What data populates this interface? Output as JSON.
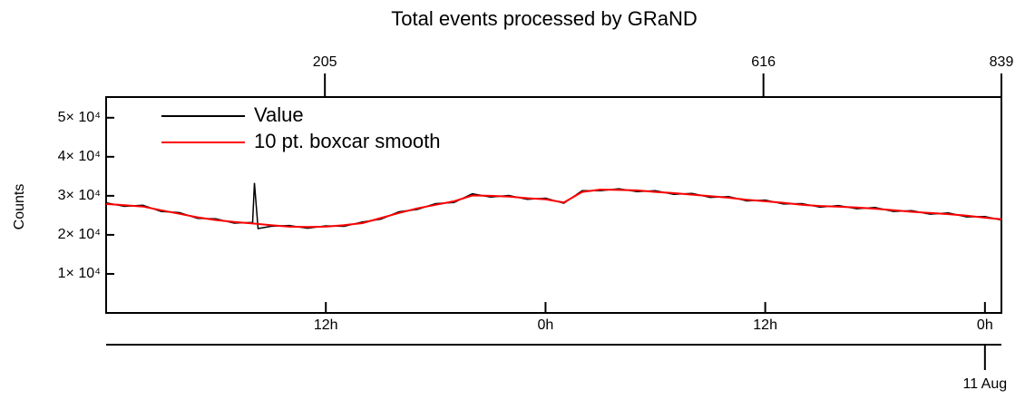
{
  "chart_data": {
    "type": "line",
    "title": "Total events processed by GRaND",
    "y_label": "Counts",
    "xlim": [
      0,
      48.9
    ],
    "xticks": [
      {
        "value": 12,
        "label": "12h"
      },
      {
        "value": 24,
        "label": "0h"
      },
      {
        "value": 36,
        "label": "12h"
      },
      {
        "value": 48,
        "label": "0h"
      }
    ],
    "x2lim": [
      0,
      839
    ],
    "x2ticks": [
      205,
      616,
      839
    ],
    "date_tick": {
      "value": 48,
      "label": "11 Aug"
    },
    "ylim": [
      0,
      55300
    ],
    "yticks": [
      {
        "value": 10000,
        "label": "1× 10⁴"
      },
      {
        "value": 20000,
        "label": "2× 10⁴"
      },
      {
        "value": 30000,
        "label": "3× 10⁴"
      },
      {
        "value": 40000,
        "label": "4× 10⁴"
      },
      {
        "value": 50000,
        "label": "5× 10⁴"
      }
    ],
    "legend": "upper left",
    "series": [
      {
        "name": "Value",
        "color": "#000000",
        "x": [
          0,
          1,
          2,
          3,
          4,
          5,
          6,
          7,
          8,
          8.1,
          8.3,
          9,
          10,
          11,
          12,
          13,
          14,
          15,
          16,
          17,
          18,
          19,
          20,
          21,
          22,
          23,
          24,
          25,
          26,
          27,
          28,
          29,
          30,
          31,
          32,
          33,
          34,
          35,
          36,
          37,
          38,
          39,
          40,
          41,
          42,
          43,
          44,
          45,
          46,
          47,
          48,
          48.9
        ],
        "values": [
          28200,
          27300,
          27600,
          26000,
          25700,
          24200,
          24100,
          23000,
          23200,
          33300,
          21600,
          22200,
          22400,
          21700,
          22300,
          22200,
          23300,
          24000,
          25900,
          26500,
          28000,
          28300,
          30500,
          29700,
          30100,
          29100,
          29400,
          28100,
          31300,
          31300,
          31800,
          31100,
          31300,
          30400,
          30600,
          29600,
          29800,
          28700,
          28900,
          27900,
          28000,
          27100,
          27500,
          26700,
          27000,
          26000,
          26200,
          25300,
          25600,
          24600,
          24700,
          23800
        ]
      },
      {
        "name": "10 pt. boxcar smooth",
        "color": "#ff0000",
        "x": [
          0,
          1,
          2,
          3,
          4,
          5,
          6,
          7,
          8,
          9,
          10,
          11,
          12,
          13,
          14,
          15,
          16,
          17,
          18,
          19,
          20,
          21,
          22,
          23,
          24,
          25,
          26,
          27,
          28,
          29,
          30,
          31,
          32,
          33,
          34,
          35,
          36,
          37,
          38,
          39,
          40,
          41,
          42,
          43,
          44,
          45,
          46,
          47,
          48,
          48.9
        ],
        "values": [
          27900,
          27600,
          27250,
          26300,
          25400,
          24500,
          23800,
          23300,
          22900,
          22500,
          22100,
          22000,
          22100,
          22500,
          23000,
          24300,
          25600,
          26800,
          27700,
          28600,
          30100,
          30000,
          29800,
          29400,
          29100,
          28300,
          31000,
          31600,
          31500,
          31400,
          31000,
          30700,
          30300,
          29900,
          29500,
          29000,
          28600,
          28200,
          27700,
          27400,
          27200,
          27000,
          26700,
          26300,
          25900,
          25600,
          25300,
          24900,
          24400,
          24000
        ]
      }
    ]
  }
}
